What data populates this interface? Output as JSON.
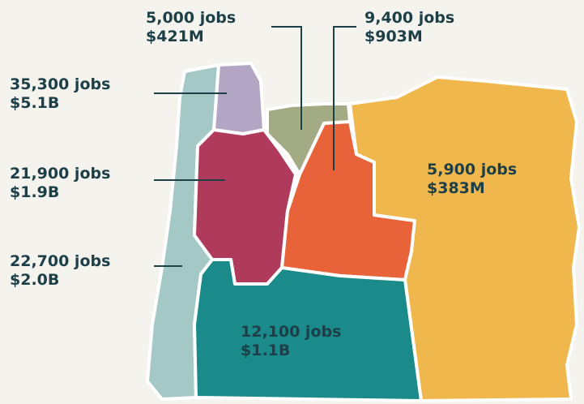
{
  "regions": [
    {
      "jobs": "5,000 jobs",
      "value": "$421M"
    },
    {
      "jobs": "9,400 jobs",
      "value": "$903M"
    },
    {
      "jobs": "35,300 jobs",
      "value": "$5.1B"
    },
    {
      "jobs": "21,900 jobs",
      "value": "$1.9B"
    },
    {
      "jobs": "22,700 jobs",
      "value": "$2.0B"
    },
    {
      "jobs": "5,900 jobs",
      "value": "$383M"
    },
    {
      "jobs": "12,100 jobs",
      "value": "$1.1B"
    }
  ]
}
